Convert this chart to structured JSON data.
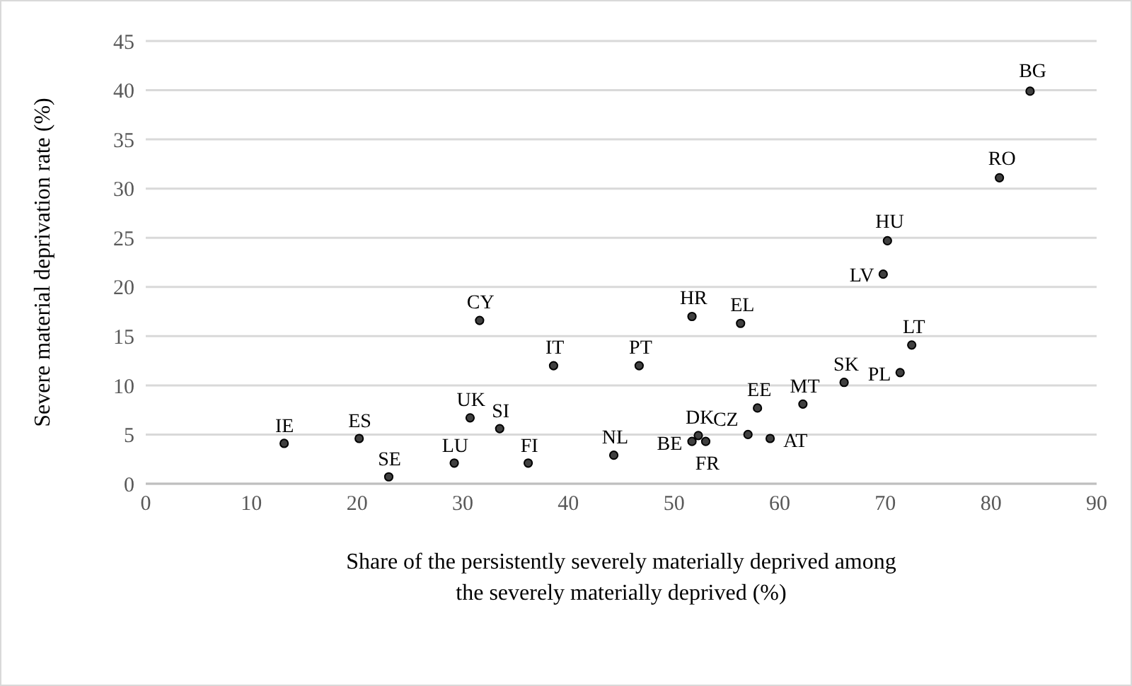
{
  "chart_data": {
    "type": "scatter",
    "xlabel": "Share of the persistently severely materially deprived among the severely materially deprived (%)",
    "ylabel": "Severe material deprivation rate (%)",
    "xlim": [
      0,
      90
    ],
    "xticks": [
      0,
      10,
      20,
      30,
      40,
      50,
      60,
      70,
      80,
      90
    ],
    "ylim": [
      0,
      45
    ],
    "yticks": [
      0,
      5,
      10,
      15,
      20,
      25,
      30,
      35,
      40,
      45
    ],
    "grid": "y",
    "legend": false,
    "marker": "circle",
    "series": [
      {
        "color": "#404040",
        "x": [
          13.1,
          20.2,
          23.0,
          29.2,
          30.7,
          31.6,
          33.5,
          36.2,
          38.6,
          44.3,
          46.7,
          51.7,
          51.7,
          52.3,
          53.0,
          56.3,
          57.0,
          57.9,
          59.1,
          62.2,
          66.1,
          71.4,
          72.5,
          69.8,
          70.2,
          80.8,
          83.7
        ],
        "values": [
          4.1,
          4.6,
          0.7,
          2.1,
          6.7,
          16.6,
          5.6,
          2.1,
          12.0,
          2.9,
          12.0,
          17.0,
          4.3,
          4.9,
          4.3,
          16.3,
          5.0,
          7.7,
          4.6,
          8.1,
          10.3,
          11.3,
          14.1,
          21.3,
          24.7,
          31.1,
          39.9
        ],
        "value_labels": [
          "IE",
          "ES",
          "SE",
          "LU",
          "UK",
          "CY",
          "SI",
          "FI",
          "IT",
          "NL",
          "PT",
          "HR",
          "BE",
          "DK",
          "FR",
          "EL",
          "CZ",
          "EE",
          "AT",
          "MT",
          "SK",
          "PL",
          "LT",
          "LV",
          "HU",
          "RO",
          "BG"
        ]
      }
    ]
  }
}
